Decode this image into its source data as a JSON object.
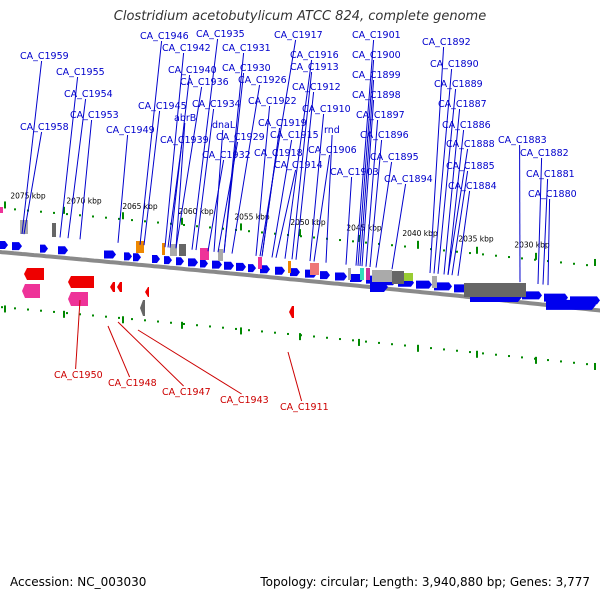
{
  "title": "Clostridium acetobutylicum ATCC 824, complete genome",
  "footer": {
    "accession": "Accession: NC_003030",
    "stats": "Topology: circular; Length: 3,940,880 bp; Genes: 3,777"
  },
  "colors": {
    "forward_label": "#0000cc",
    "reverse_label": "#cc0000",
    "forward_gene": "#0000ee",
    "reverse_gene": "#ee0000",
    "axis": "#8a8a8a",
    "tick": "#008800"
  },
  "scale_labels": [
    "2075 kbp",
    "2070 kbp",
    "2065 kbp",
    "2060 kbp",
    "2055 kbp",
    "2050 kbp",
    "2045 kbp",
    "2040 kbp",
    "2035 kbp",
    "2030 kbp"
  ],
  "forward_labels": [
    "CA_C1959",
    "CA_C1955",
    "CA_C1954",
    "CA_C1953",
    "CA_C1958",
    "CA_C1949",
    "CA_C1946",
    "CA_C1942",
    "CA_C1940",
    "CA_C1936",
    "CA_C1945",
    "abrB",
    "CA_C1939",
    "CA_C1935",
    "CA_C1931",
    "CA_C1930",
    "CA_C1926",
    "CA_C1934",
    "dnaL",
    "CA_C1929",
    "CA_C1932",
    "CA_C1917",
    "CA_C1916",
    "CA_C1913",
    "CA_C1922",
    "CA_C1912",
    "CA_C1919",
    "CA_C1915",
    "CA_C1918",
    "CA_C1914",
    "CA_C1910",
    "rnd",
    "CA_C1906",
    "CA_C1903",
    "CA_C1901",
    "CA_C1900",
    "CA_C1899",
    "CA_C1898",
    "CA_C1897",
    "CA_C1896",
    "CA_C1895",
    "CA_C1894",
    "CA_C1892",
    "CA_C1890",
    "CA_C1889",
    "CA_C1887",
    "CA_C1886",
    "CA_C1888",
    "CA_C1885",
    "CA_C1884",
    "CA_C1883",
    "CA_C1882",
    "CA_C1881",
    "CA_C1880"
  ],
  "reverse_labels": [
    "CA_C1950",
    "CA_C1948",
    "CA_C1947",
    "CA_C1943",
    "CA_C1911"
  ]
}
